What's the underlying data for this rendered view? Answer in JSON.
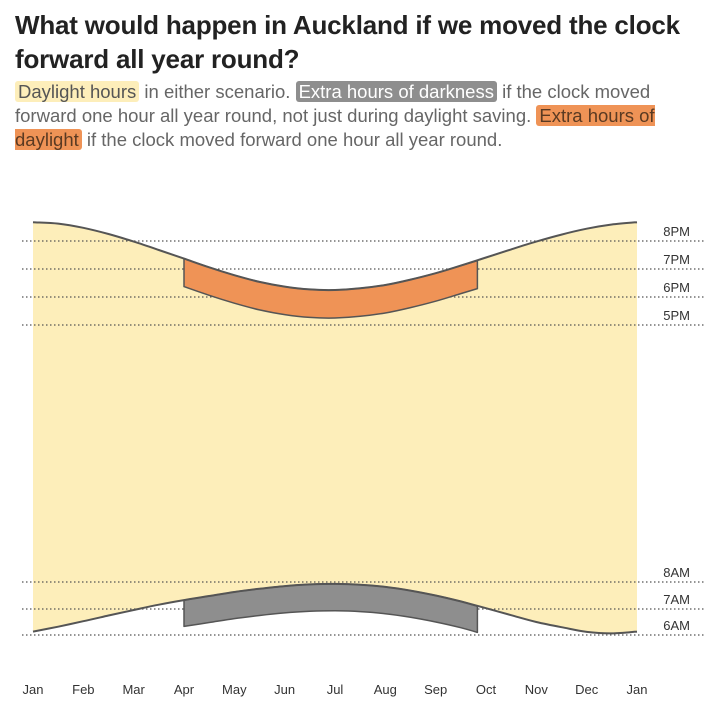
{
  "title": "What would happen in Auckland if we moved the clock forward all year round?",
  "subtitle": {
    "legend_daylight": "Daylight hours",
    "text_1": " in either scenario. ",
    "legend_darkness": "Extra hours of darkness",
    "text_2": " if the clock moved forward one hour all year round, not just during daylight saving. ",
    "legend_extra_daylight": "Extra hours of daylight",
    "text_3": " if the clock moved forward one hour all year round."
  },
  "colors": {
    "daylight": "#fdeeba",
    "extra_darkness": "#8e8e8e",
    "extra_daylight": "#ef9356",
    "line": "#555555",
    "gridline": "#555555"
  },
  "chart_data": {
    "type": "area",
    "x_unit": "month",
    "x": [
      0,
      0.5,
      1,
      1.5,
      2,
      2.5,
      3,
      3.5,
      4,
      4.5,
      5,
      5.5,
      6,
      6.5,
      7,
      7.5,
      8,
      8.5,
      9,
      9.5,
      10,
      10.5,
      11,
      11.5,
      12
    ],
    "x_ticks": [
      "Jan",
      "Feb",
      "Mar",
      "Apr",
      "May",
      "Jun",
      "Jul",
      "Aug",
      "Sep",
      "Oct",
      "Nov",
      "Dec",
      "Jan"
    ],
    "y_ticks_evening": [
      "8PM",
      "7PM",
      "6PM",
      "5PM"
    ],
    "y_ticks_morning": [
      "8AM",
      "7AM",
      "6AM"
    ],
    "series": [
      {
        "name": "",
        "role": "sunset",
        "values": [
          20.67,
          20.62,
          20.47,
          20.25,
          19.98,
          19.68,
          19.37,
          19.06,
          18.78,
          18.54,
          18.37,
          18.27,
          18.25,
          18.31,
          18.43,
          18.62,
          18.85,
          19.12,
          19.41,
          19.7,
          19.98,
          20.23,
          20.44,
          20.59,
          20.67
        ]
      },
      {
        "name": "",
        "role": "sunrise",
        "values": [
          6.13,
          6.32,
          6.53,
          6.75,
          6.96,
          7.16,
          7.33,
          7.48,
          7.63,
          7.75,
          7.85,
          7.91,
          7.93,
          7.9,
          7.82,
          7.68,
          7.5,
          7.28,
          7.03,
          6.76,
          6.5,
          6.3,
          6.12,
          6.06,
          6.13
        ]
      },
      {
        "name": "",
        "role": "extra_daylight_band",
        "x": [
          3,
          3.5,
          4,
          4.5,
          5,
          5.5,
          6,
          6.5,
          7,
          7.5,
          8,
          8.5,
          8.83
        ],
        "from": [
          19.37,
          19.06,
          18.78,
          18.54,
          18.37,
          18.27,
          18.25,
          18.31,
          18.43,
          18.62,
          18.85,
          19.12,
          19.3
        ],
        "to": [
          18.37,
          18.06,
          17.78,
          17.54,
          17.37,
          17.27,
          17.25,
          17.31,
          17.43,
          17.62,
          17.85,
          18.12,
          18.3
        ]
      },
      {
        "name": "",
        "role": "extra_darkness_band",
        "x": [
          3,
          3.5,
          4,
          4.5,
          5,
          5.5,
          6,
          6.5,
          7,
          7.5,
          8,
          8.5,
          8.83
        ],
        "from": [
          7.33,
          7.48,
          7.63,
          7.75,
          7.85,
          7.91,
          7.93,
          7.9,
          7.82,
          7.68,
          7.5,
          7.28,
          7.1
        ],
        "to": [
          6.33,
          6.48,
          6.63,
          6.75,
          6.85,
          6.91,
          6.93,
          6.9,
          6.82,
          6.68,
          6.5,
          6.28,
          6.1
        ]
      }
    ],
    "grid": "dotted horizontal lines at hour marks"
  }
}
